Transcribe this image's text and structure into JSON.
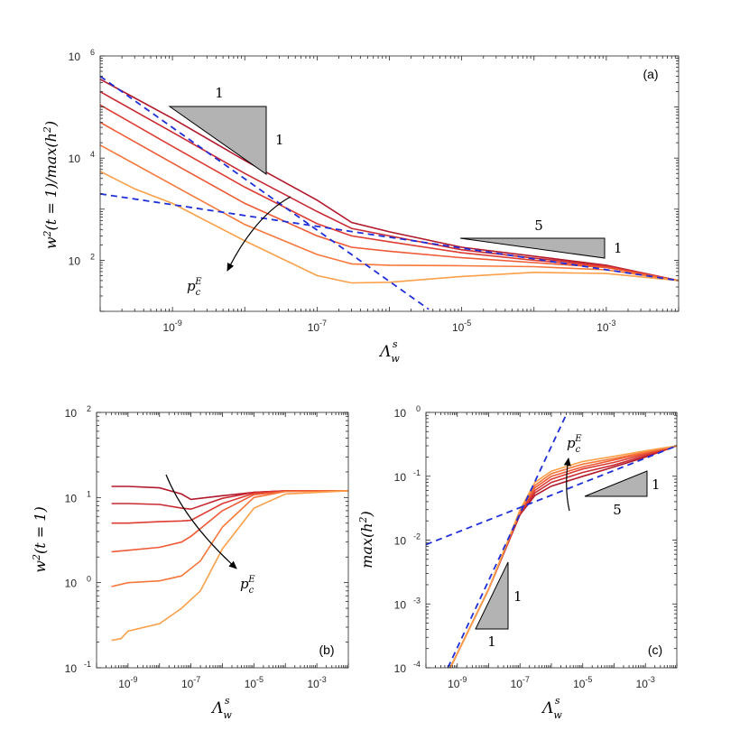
{
  "figure": {
    "colors": {
      "axis": "#262626",
      "dashed": "#1f2fd9",
      "triangle_fill": "#b3b3b3"
    }
  },
  "chart_data": [
    {
      "panel": "a",
      "type": "line",
      "scale": "loglog",
      "label": "(a)",
      "xlabel": "Λ_w^s",
      "ylabel": "w^2(t=1)/max(h^2)",
      "xlim": [
        1e-10,
        0.01
      ],
      "ylim": [
        10,
        1000000.0
      ],
      "xticks": [
        1e-09,
        1e-07,
        1e-05,
        0.001
      ],
      "yticks": [
        100,
        10000,
        1000000
      ],
      "xtick_labels": [
        [
          "10",
          "-9"
        ],
        [
          "10",
          "-7"
        ],
        [
          "10",
          "-5"
        ],
        [
          "10",
          "-3"
        ]
      ],
      "ytick_labels": [
        [
          "10",
          "2"
        ],
        [
          "10",
          "4"
        ],
        [
          "10",
          "6"
        ]
      ],
      "series": [
        {
          "color": "#b2182b",
          "points": [
            [
              1e-10,
              350000
            ],
            [
              1e-09,
              60000
            ],
            [
              1e-08,
              9000
            ],
            [
              1e-07,
              1500
            ],
            [
              3e-07,
              550
            ],
            [
              1e-06,
              360
            ],
            [
              1e-05,
              180
            ],
            [
              0.0001,
              120
            ],
            [
              0.001,
              80
            ],
            [
              0.01,
              40
            ]
          ]
        },
        {
          "color": "#c92a32",
          "points": [
            [
              1e-10,
              200000
            ],
            [
              1e-09,
              32000
            ],
            [
              1e-08,
              5000
            ],
            [
              1e-07,
              900
            ],
            [
              3e-07,
              420
            ],
            [
              1e-06,
              300
            ],
            [
              1e-05,
              160
            ],
            [
              0.0001,
              110
            ],
            [
              0.001,
              78
            ],
            [
              0.01,
              40
            ]
          ]
        },
        {
          "color": "#de3d33",
          "points": [
            [
              1e-10,
              110000
            ],
            [
              1e-09,
              17000
            ],
            [
              1e-08,
              2700
            ],
            [
              1e-07,
              520
            ],
            [
              3e-07,
              300
            ],
            [
              1e-06,
              230
            ],
            [
              1e-05,
              140
            ],
            [
              0.0001,
              100
            ],
            [
              0.001,
              75
            ],
            [
              0.01,
              40
            ]
          ]
        },
        {
          "color": "#ef5a35",
          "points": [
            [
              1e-10,
              50000
            ],
            [
              1e-09,
              8000
            ],
            [
              1e-08,
              1300
            ],
            [
              1e-07,
              300
            ],
            [
              3e-07,
              180
            ],
            [
              1e-06,
              150
            ],
            [
              1e-05,
              112
            ],
            [
              0.0001,
              90
            ],
            [
              0.001,
              72
            ],
            [
              0.01,
              40
            ]
          ]
        },
        {
          "color": "#f7773a",
          "points": [
            [
              1e-10,
              18000
            ],
            [
              1e-09,
              3000
            ],
            [
              1e-08,
              500
            ],
            [
              1e-07,
              130
            ],
            [
              3e-07,
              85
            ],
            [
              1e-06,
              80
            ],
            [
              1e-05,
              78
            ],
            [
              0.0001,
              75
            ],
            [
              0.001,
              65
            ],
            [
              0.01,
              40
            ]
          ]
        },
        {
          "color": "#fba049",
          "points": [
            [
              1e-10,
              5500
            ],
            [
              3e-10,
              2500
            ],
            [
              1e-09,
              1300
            ],
            [
              1e-08,
              240
            ],
            [
              1e-07,
              50
            ],
            [
              3e-07,
              36
            ],
            [
              1e-06,
              37
            ],
            [
              1e-05,
              48
            ],
            [
              0.0001,
              58
            ],
            [
              0.001,
              55
            ],
            [
              0.01,
              40
            ]
          ]
        }
      ],
      "dashed_asymptotes": [
        {
          "name": "slope-minus-1",
          "points": [
            [
              1e-10,
              400000
            ],
            [
              3.5e-06,
              11
            ]
          ]
        },
        {
          "name": "slope-minus-one-fifth",
          "points": [
            [
              1e-10,
              2000
            ],
            [
              0.01,
              40
            ]
          ]
        }
      ],
      "slope_triangles": [
        {
          "run": "1",
          "rise": "1"
        },
        {
          "run": "5",
          "rise": "1"
        }
      ],
      "arrow_label": "p_c^E"
    },
    {
      "panel": "b",
      "type": "line",
      "scale": "loglog",
      "label": "(b)",
      "xlabel": "Λ_w^s",
      "ylabel": "w^2(t=1)",
      "xlim": [
        1e-10,
        0.01
      ],
      "ylim": [
        0.1,
        100
      ],
      "xticks": [
        1e-09,
        1e-07,
        1e-05,
        0.001
      ],
      "yticks": [
        0.1,
        1,
        10,
        100
      ],
      "xtick_labels": [
        [
          "10",
          "-9"
        ],
        [
          "10",
          "-7"
        ],
        [
          "10",
          "-5"
        ],
        [
          "10",
          "-3"
        ]
      ],
      "ytick_labels": [
        [
          "10",
          "-1"
        ],
        [
          "10",
          "0"
        ],
        [
          "10",
          "1"
        ],
        [
          "10",
          "2"
        ]
      ],
      "series": [
        {
          "color": "#b2182b",
          "points": [
            [
              3e-10,
              13.5
            ],
            [
              1e-09,
              13.5
            ],
            [
              1e-08,
              13
            ],
            [
              5e-08,
              11
            ],
            [
              1e-07,
              9.5
            ],
            [
              1e-06,
              10.5
            ],
            [
              1e-05,
              11.5
            ],
            [
              0.0001,
              12
            ],
            [
              0.01,
              12
            ]
          ]
        },
        {
          "color": "#c92a32",
          "points": [
            [
              3e-10,
              8.5
            ],
            [
              1e-09,
              8.5
            ],
            [
              1e-08,
              8.3
            ],
            [
              5e-08,
              7.5
            ],
            [
              1e-07,
              7.3
            ],
            [
              1e-06,
              9.8
            ],
            [
              1e-05,
              11.5
            ],
            [
              0.0001,
              12
            ],
            [
              0.01,
              12
            ]
          ]
        },
        {
          "color": "#de3d33",
          "points": [
            [
              3e-10,
              5
            ],
            [
              1e-09,
              5
            ],
            [
              1e-08,
              5.2
            ],
            [
              5e-08,
              5.3
            ],
            [
              1e-07,
              5.4
            ],
            [
              1e-06,
              8.5
            ],
            [
              1e-05,
              11.2
            ],
            [
              0.0001,
              12
            ],
            [
              0.01,
              12
            ]
          ]
        },
        {
          "color": "#ef5a35",
          "points": [
            [
              3e-10,
              2.3
            ],
            [
              1e-09,
              2.4
            ],
            [
              1e-08,
              2.6
            ],
            [
              5e-08,
              3
            ],
            [
              1e-07,
              3.5
            ],
            [
              1e-06,
              7
            ],
            [
              1e-05,
              10.8
            ],
            [
              0.0001,
              11.8
            ],
            [
              0.01,
              12
            ]
          ]
        },
        {
          "color": "#f7773a",
          "points": [
            [
              3e-10,
              0.9
            ],
            [
              1e-09,
              1
            ],
            [
              1e-08,
              1.05
            ],
            [
              5e-08,
              1.2
            ],
            [
              2e-07,
              1.8
            ],
            [
              1e-06,
              4.5
            ],
            [
              1e-05,
              10
            ],
            [
              0.0001,
              11.8
            ],
            [
              0.01,
              12
            ]
          ]
        },
        {
          "color": "#fba049",
          "points": [
            [
              3e-10,
              0.21
            ],
            [
              6e-10,
              0.22
            ],
            [
              1e-09,
              0.27
            ],
            [
              1e-08,
              0.33
            ],
            [
              5e-08,
              0.5
            ],
            [
              2e-07,
              0.8
            ],
            [
              1e-06,
              2.5
            ],
            [
              1e-05,
              7.5
            ],
            [
              0.0001,
              11
            ],
            [
              0.01,
              12
            ]
          ]
        }
      ],
      "arrow_label": "p_c^E"
    },
    {
      "panel": "c",
      "type": "line",
      "scale": "loglog",
      "label": "(c)",
      "xlabel": "Λ_w^s",
      "ylabel": "max(h^2)",
      "xlim": [
        1e-10,
        0.01
      ],
      "ylim": [
        0.0001,
        1
      ],
      "xticks": [
        1e-09,
        1e-07,
        1e-05,
        0.001
      ],
      "yticks": [
        0.0001,
        0.001,
        0.01,
        0.1,
        1
      ],
      "xtick_labels": [
        [
          "10",
          "-9"
        ],
        [
          "10",
          "-7"
        ],
        [
          "10",
          "-5"
        ],
        [
          "10",
          "-3"
        ]
      ],
      "ytick_labels": [
        [
          "10",
          "-4"
        ],
        [
          "10",
          "-3"
        ],
        [
          "10",
          "-2"
        ],
        [
          "10",
          "-1"
        ],
        [
          "10",
          "0"
        ]
      ],
      "series": [
        {
          "color": "#b2182b",
          "points": [
            [
              6e-10,
              0.0001
            ],
            [
              1e-08,
              0.0017
            ],
            [
              1e-07,
              0.025
            ],
            [
              3e-07,
              0.05
            ],
            [
              1e-06,
              0.07
            ],
            [
              1e-05,
              0.1
            ],
            [
              0.0001,
              0.14
            ],
            [
              0.001,
              0.2
            ],
            [
              0.01,
              0.3
            ]
          ]
        },
        {
          "color": "#c92a32",
          "points": [
            [
              6e-10,
              0.0001
            ],
            [
              1e-08,
              0.0017
            ],
            [
              1e-07,
              0.026
            ],
            [
              3e-07,
              0.055
            ],
            [
              1e-06,
              0.08
            ],
            [
              1e-05,
              0.115
            ],
            [
              0.0001,
              0.15
            ],
            [
              0.001,
              0.21
            ],
            [
              0.01,
              0.3
            ]
          ]
        },
        {
          "color": "#de3d33",
          "points": [
            [
              6e-10,
              0.0001
            ],
            [
              1e-08,
              0.0017
            ],
            [
              1e-07,
              0.027
            ],
            [
              3e-07,
              0.06
            ],
            [
              1e-06,
              0.09
            ],
            [
              1e-05,
              0.13
            ],
            [
              0.0001,
              0.165
            ],
            [
              0.001,
              0.22
            ],
            [
              0.01,
              0.3
            ]
          ]
        },
        {
          "color": "#ef5a35",
          "points": [
            [
              6e-10,
              0.0001
            ],
            [
              1e-08,
              0.0017
            ],
            [
              1e-07,
              0.028
            ],
            [
              3e-07,
              0.066
            ],
            [
              1e-06,
              0.1
            ],
            [
              1e-05,
              0.14
            ],
            [
              0.0001,
              0.18
            ],
            [
              0.001,
              0.23
            ],
            [
              0.01,
              0.3
            ]
          ]
        },
        {
          "color": "#f7773a",
          "points": [
            [
              6e-10,
              0.0001
            ],
            [
              1e-08,
              0.0017
            ],
            [
              1e-07,
              0.029
            ],
            [
              3e-07,
              0.072
            ],
            [
              1e-06,
              0.11
            ],
            [
              1e-05,
              0.155
            ],
            [
              0.0001,
              0.19
            ],
            [
              0.001,
              0.24
            ],
            [
              0.01,
              0.3
            ]
          ]
        },
        {
          "color": "#fba049",
          "points": [
            [
              6e-10,
              0.0001
            ],
            [
              1e-08,
              0.0017
            ],
            [
              1e-07,
              0.03
            ],
            [
              3e-07,
              0.08
            ],
            [
              1e-06,
              0.12
            ],
            [
              1e-05,
              0.17
            ],
            [
              0.0001,
              0.205
            ],
            [
              0.001,
              0.25
            ],
            [
              0.01,
              0.3
            ]
          ]
        }
      ],
      "dashed_asymptotes": [
        {
          "name": "slope-one",
          "points": [
            [
              5e-10,
              6e-05
            ],
            [
              3.2e-06,
              1
            ]
          ]
        },
        {
          "name": "slope-one-fifth",
          "points": [
            [
              1e-10,
              0.0085
            ],
            [
              0.01,
              0.3
            ]
          ]
        }
      ],
      "slope_triangles": [
        {
          "run": "1",
          "rise": "1"
        },
        {
          "run": "5",
          "rise": "1"
        }
      ],
      "arrow_label": "p_c^E"
    }
  ]
}
